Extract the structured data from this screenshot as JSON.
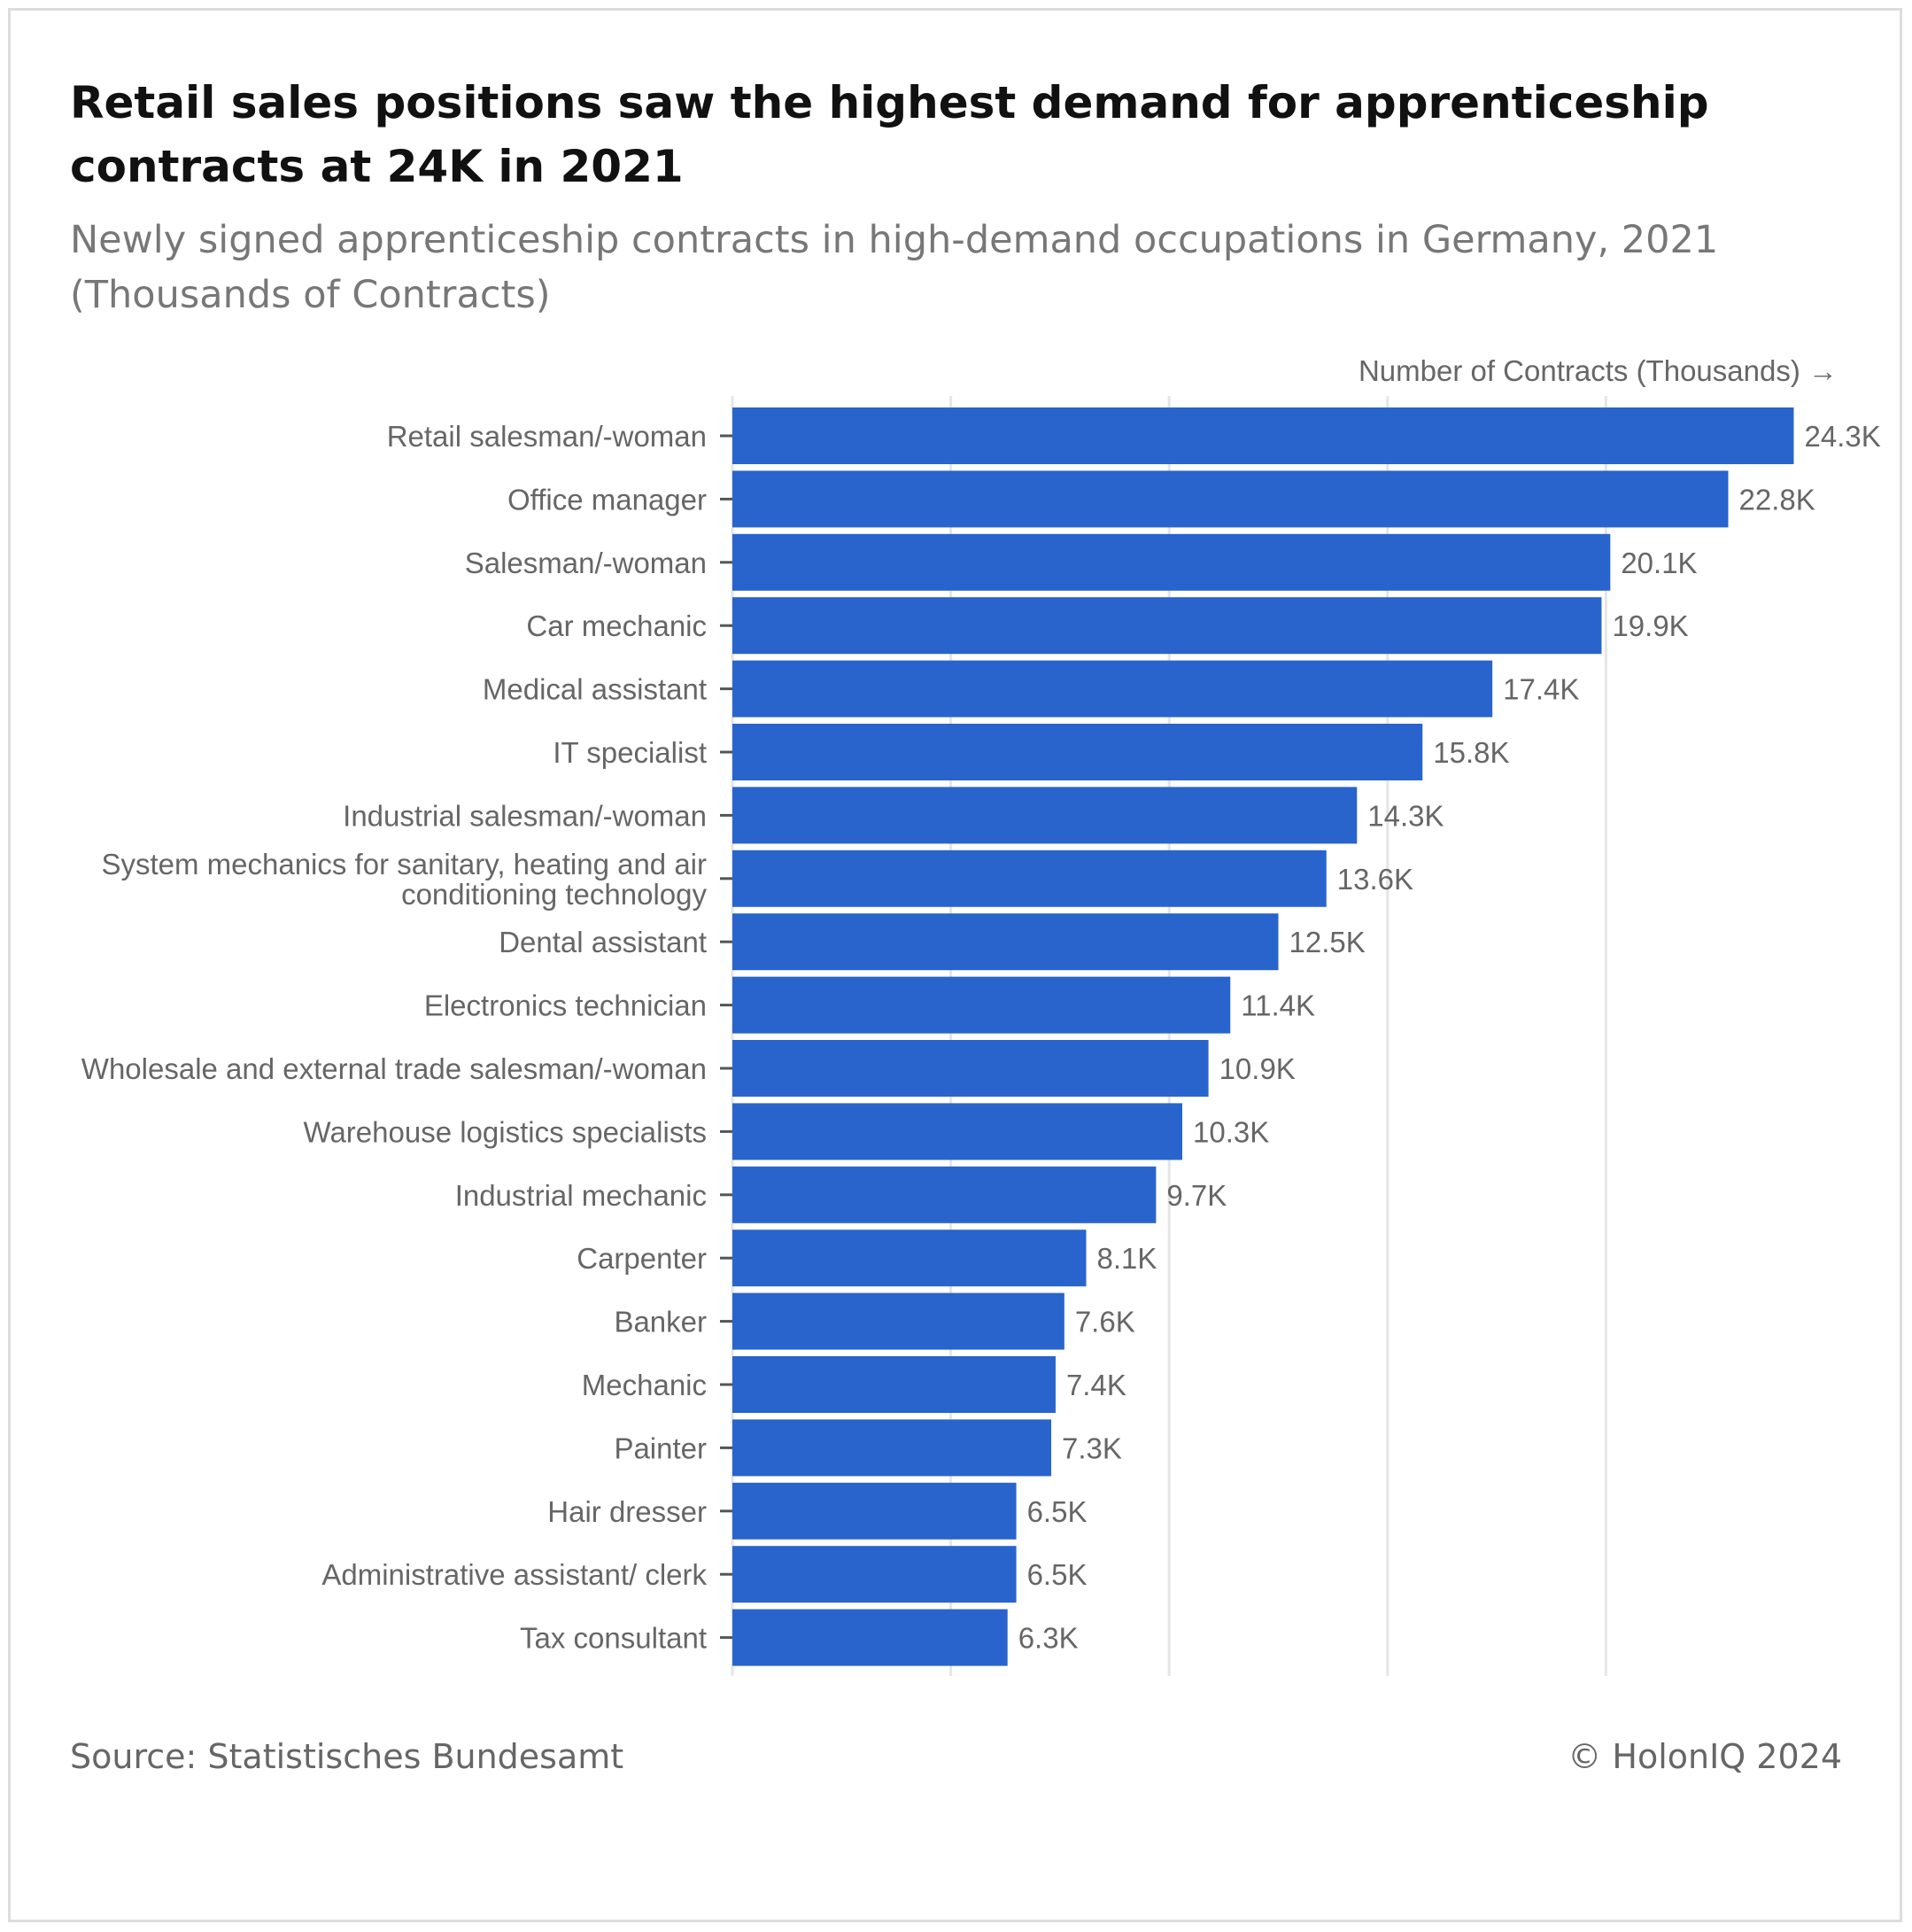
{
  "title": "Retail sales positions saw the highest demand for apprenticeship contracts at 24K in 2021",
  "subtitle": "Newly signed apprenticeship contracts in high-demand occupations in Germany, 2021 (Thousands of Contracts)",
  "source": "Source: Statistisches Bundesamt",
  "credit": "© HolonIQ 2024",
  "colors": {
    "bar": "#2864cc",
    "grid": "#e5e5e5",
    "axis_label": "#666666",
    "value_label": "#666666"
  },
  "chart_data": {
    "type": "bar",
    "orientation": "horizontal",
    "xlabel": "Number of Contracts (Thousands) →",
    "ylabel": "",
    "xlim": [
      0,
      25
    ],
    "grid": true,
    "categories": [
      "Retail salesman/-woman",
      "Office manager",
      "Salesman/-woman",
      "Car mechanic",
      "Medical assistant",
      "IT specialist",
      "Industrial salesman/-woman",
      "System mechanics for sanitary, heating and air conditioning technology",
      "Dental assistant",
      "Electronics technician",
      "Wholesale and external trade salesman/-woman",
      "Warehouse logistics specialists",
      "Industrial mechanic",
      "Carpenter",
      "Banker",
      "Mechanic",
      "Painter",
      "Hair dresser",
      "Administrative assistant/ clerk",
      "Tax consultant"
    ],
    "category_lines": [
      [
        "Retail salesman/-woman"
      ],
      [
        "Office manager"
      ],
      [
        "Salesman/-woman"
      ],
      [
        "Car mechanic"
      ],
      [
        "Medical assistant"
      ],
      [
        "IT specialist"
      ],
      [
        "Industrial salesman/-woman"
      ],
      [
        "System mechanics for sanitary, heating and air",
        "conditioning technology"
      ],
      [
        "Dental assistant"
      ],
      [
        "Electronics technician"
      ],
      [
        "Wholesale and external trade salesman/-woman"
      ],
      [
        "Warehouse logistics specialists"
      ],
      [
        "Industrial mechanic"
      ],
      [
        "Carpenter"
      ],
      [
        "Banker"
      ],
      [
        "Mechanic"
      ],
      [
        "Painter"
      ],
      [
        "Hair dresser"
      ],
      [
        "Administrative assistant/ clerk"
      ],
      [
        "Tax consultant"
      ]
    ],
    "values": [
      24.3,
      22.8,
      20.1,
      19.9,
      17.4,
      15.8,
      14.3,
      13.6,
      12.5,
      11.4,
      10.9,
      10.3,
      9.7,
      8.1,
      7.6,
      7.4,
      7.3,
      6.5,
      6.5,
      6.3
    ],
    "value_labels": [
      "24.3K",
      "22.8K",
      "20.1K",
      "19.9K",
      "17.4K",
      "15.8K",
      "14.3K",
      "13.6K",
      "12.5K",
      "11.4K",
      "10.9K",
      "10.3K",
      "9.7K",
      "8.1K",
      "7.6K",
      "7.4K",
      "7.3K",
      "6.5K",
      "6.5K",
      "6.3K"
    ]
  }
}
